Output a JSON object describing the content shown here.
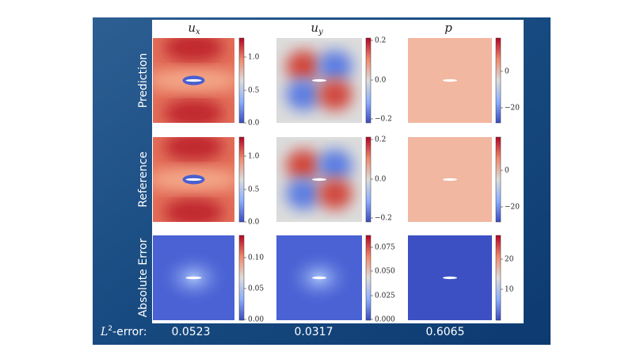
{
  "columns": [
    {
      "base": "u",
      "sub": "x"
    },
    {
      "base": "u",
      "sub": "y"
    },
    {
      "base": "p"
    }
  ],
  "rows": [
    "Prediction",
    "Reference",
    "Absolute Error"
  ],
  "colorbars": [
    [
      [
        "1.0",
        "0.5",
        "0.0"
      ],
      [
        "0.2",
        "0.0",
        "−0.2"
      ],
      [
        "0",
        "−20"
      ]
    ],
    [
      [
        "1.0",
        "0.5",
        "0.0"
      ],
      [
        "0.2",
        "0.0",
        "−0.2"
      ],
      [
        "0",
        "−20"
      ]
    ],
    [
      [
        "0.10",
        "0.05",
        "0.00"
      ],
      [
        "0.075",
        "0.050",
        "0.025",
        "0.000"
      ],
      [
        "20",
        "10"
      ]
    ]
  ],
  "error_row": {
    "symbol": "L",
    "power": "2",
    "text": "-error:",
    "values": [
      "0.0523",
      "0.0317",
      "0.6065"
    ]
  }
}
